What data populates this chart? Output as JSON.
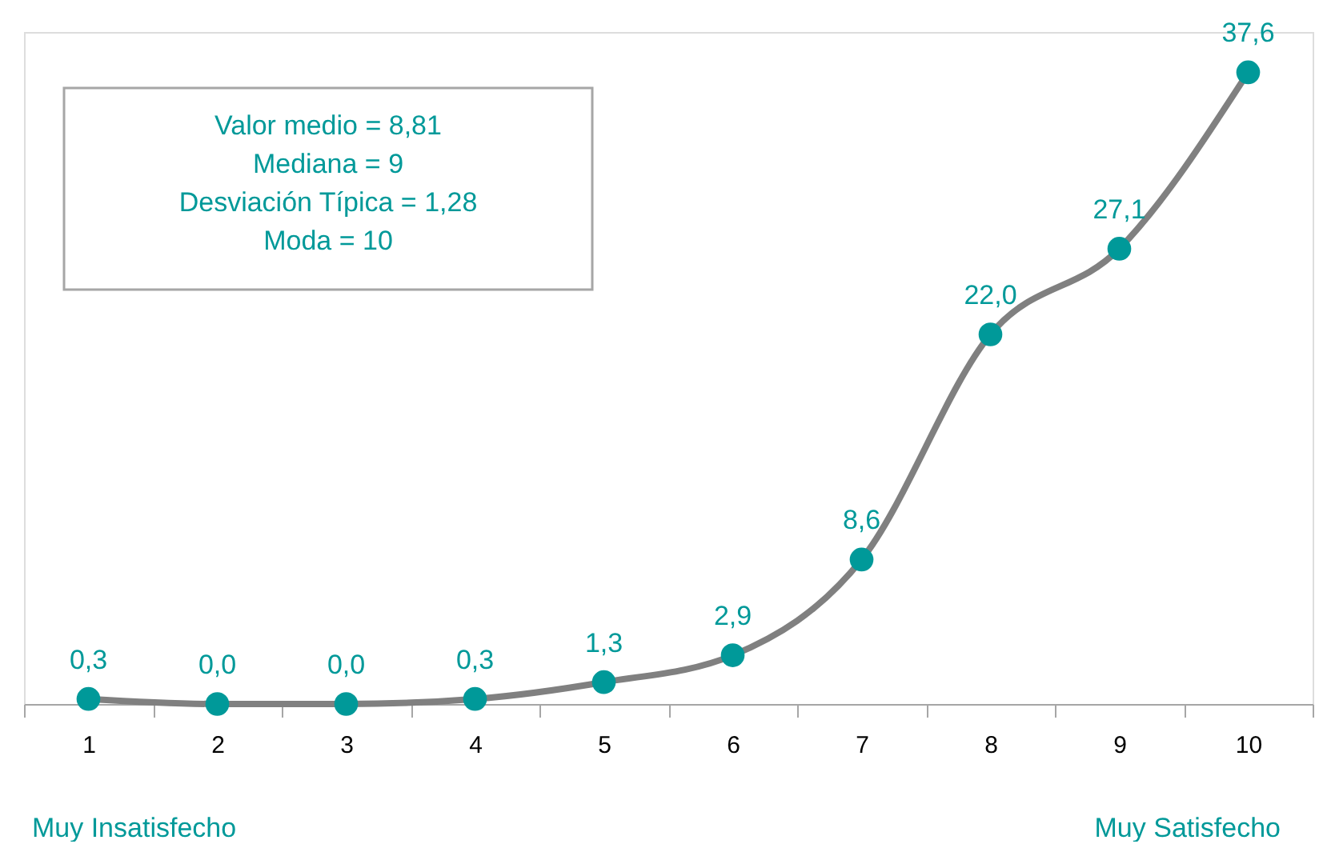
{
  "chart_data": {
    "type": "line",
    "categories": [
      "1",
      "2",
      "3",
      "4",
      "5",
      "6",
      "7",
      "8",
      "9",
      "10"
    ],
    "series": [
      {
        "color": "#808080",
        "values": [
          0.3,
          0.0,
          0.0,
          0.3,
          1.3,
          2.9,
          8.6,
          22.0,
          27.1,
          37.6
        ],
        "value_labels": [
          "0,3",
          "0,0",
          "0,0",
          "0,3",
          "1,3",
          "2,9",
          "8,6",
          "22,0",
          "27,1",
          "37,6"
        ]
      }
    ],
    "marker": "circle",
    "ylim": [
      0,
      40
    ],
    "tick_labels": "x",
    "grid": false,
    "annotations": [
      "Valor medio = 8,81",
      "Mediana = 9",
      "Desviación  Típica = 1,28",
      "Moda = 10",
      "Muy Insatisfecho",
      "Muy Satisfecho"
    ]
  }
}
